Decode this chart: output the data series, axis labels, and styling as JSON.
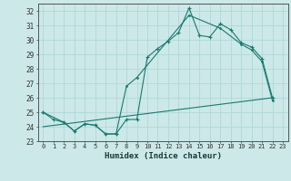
{
  "xlabel": "Humidex (Indice chaleur)",
  "xlim": [
    -0.5,
    23.5
  ],
  "ylim": [
    23,
    32.5
  ],
  "yticks": [
    23,
    24,
    25,
    26,
    27,
    28,
    29,
    30,
    31,
    32
  ],
  "xticks": [
    0,
    1,
    2,
    3,
    4,
    5,
    6,
    7,
    8,
    9,
    10,
    11,
    12,
    13,
    14,
    15,
    16,
    17,
    18,
    19,
    20,
    21,
    22,
    23
  ],
  "background_color": "#cce8e8",
  "grid_color": "#b0d8d8",
  "line_color": "#1a7a6e",
  "line1_x": [
    0,
    1,
    2,
    3,
    4,
    5,
    6,
    7,
    8,
    9,
    10,
    11,
    12,
    13,
    14,
    15,
    16,
    17,
    18,
    19,
    20,
    21,
    22
  ],
  "line1_y": [
    25.0,
    24.5,
    24.3,
    23.7,
    24.2,
    24.1,
    23.5,
    23.5,
    24.5,
    24.5,
    28.8,
    29.4,
    29.9,
    30.5,
    32.2,
    30.3,
    30.2,
    31.1,
    30.7,
    29.8,
    29.5,
    28.7,
    26.0
  ],
  "line2_x": [
    0,
    2,
    3,
    4,
    5,
    6,
    7,
    8,
    9,
    14,
    17,
    19,
    20,
    21,
    22
  ],
  "line2_y": [
    25.0,
    24.3,
    23.7,
    24.2,
    24.1,
    23.5,
    23.5,
    26.8,
    27.4,
    31.7,
    30.8,
    29.7,
    29.3,
    28.5,
    25.8
  ],
  "line3_x": [
    0,
    22
  ],
  "line3_y": [
    24.0,
    26.0
  ]
}
